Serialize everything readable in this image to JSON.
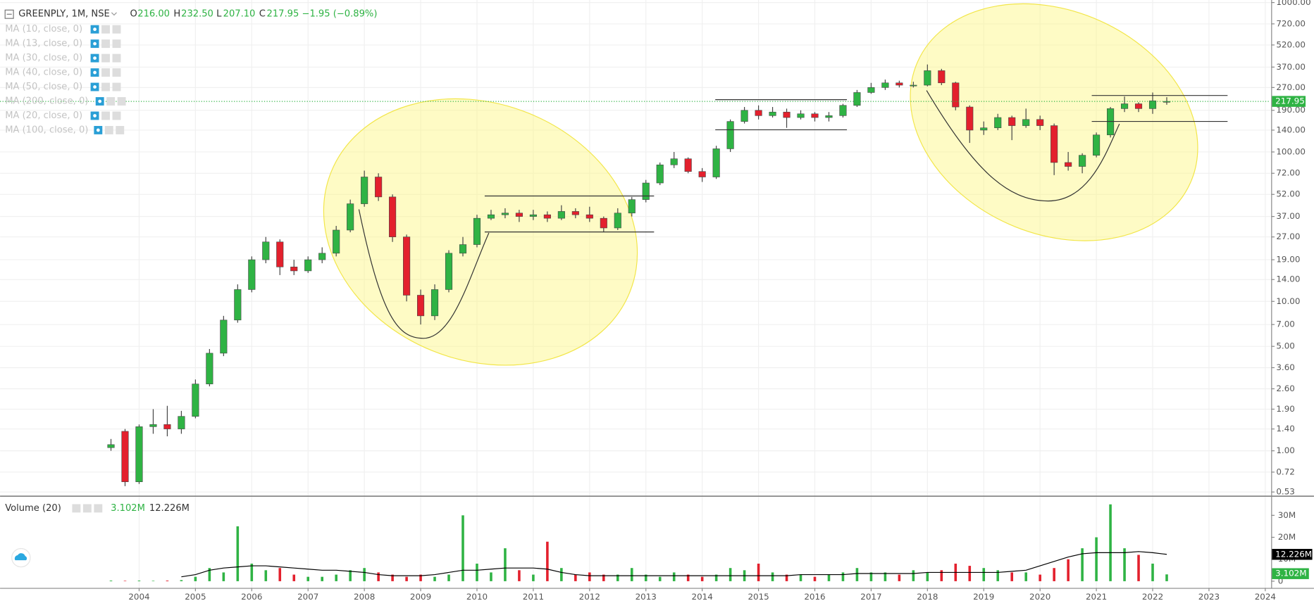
{
  "chart_data": {
    "type": "candlestick",
    "symbol": "GREENPLY, 1M, NSE",
    "ohlc_labels": [
      "O",
      "H",
      "L",
      "C"
    ],
    "ohlc_values": [
      "216.00",
      "232.50",
      "207.10",
      "217.95"
    ],
    "change": "−1.95 (−0.89%)",
    "indicators": [
      "MA (10, close, 0)",
      "MA (13, close, 0)",
      "MA (30, close, 0)",
      "MA (40, close, 0)",
      "MA (50, close, 0)",
      "MA (200, close, 0)",
      "MA (20, close, 0)",
      "MA (100, close, 0)"
    ],
    "x": [
      2003.5,
      2003.75,
      2004,
      2004.25,
      2004.5,
      2004.75,
      2005,
      2005.25,
      2005.5,
      2005.75,
      2006,
      2006.25,
      2006.5,
      2006.75,
      2007,
      2007.25,
      2007.5,
      2007.75,
      2008,
      2008.25,
      2008.5,
      2008.75,
      2009,
      2009.25,
      2009.5,
      2009.75,
      2010,
      2010.25,
      2010.5,
      2010.75,
      2011,
      2011.25,
      2011.5,
      2011.75,
      2012,
      2012.25,
      2012.5,
      2012.75,
      2013,
      2013.25,
      2013.5,
      2013.75,
      2014,
      2014.25,
      2014.5,
      2014.75,
      2015,
      2015.25,
      2015.5,
      2015.75,
      2016,
      2016.25,
      2016.5,
      2016.75,
      2017,
      2017.25,
      2017.5,
      2017.75,
      2018,
      2018.25,
      2018.5,
      2018.75,
      2019,
      2019.25,
      2019.5,
      2019.75,
      2020,
      2020.25,
      2020.5,
      2020.75,
      2021,
      2021.25,
      2021.5,
      2021.75,
      2022,
      2022.25
    ],
    "open": [
      1.05,
      1.35,
      0.62,
      1.45,
      1.5,
      1.4,
      1.7,
      2.8,
      4.5,
      7.5,
      12,
      19,
      25,
      17,
      16,
      19,
      21,
      30,
      45,
      68,
      50,
      27,
      11,
      8,
      12,
      21,
      24,
      36,
      38,
      39,
      37,
      38,
      36,
      40,
      38,
      36,
      31,
      39,
      48,
      62,
      82,
      90,
      74,
      68,
      105,
      160,
      190,
      175,
      185,
      170,
      180,
      170,
      175,
      205,
      250,
      270,
      290,
      280,
      280,
      350,
      290,
      200,
      140,
      145,
      170,
      150,
      165,
      150,
      85,
      80,
      95,
      130,
      195,
      210,
      195,
      216
    ],
    "high": [
      1.2,
      1.4,
      1.5,
      1.9,
      2.0,
      1.85,
      3.0,
      4.8,
      8,
      13,
      20,
      27,
      26,
      19,
      20,
      23,
      32,
      48,
      75,
      72,
      52,
      28,
      12,
      13,
      22,
      27,
      38,
      41,
      42,
      41,
      41,
      40,
      44,
      42,
      43,
      37,
      42,
      50,
      65,
      85,
      100,
      92,
      78,
      110,
      165,
      200,
      205,
      200,
      195,
      190,
      185,
      185,
      210,
      260,
      290,
      305,
      300,
      295,
      385,
      360,
      295,
      205,
      160,
      180,
      175,
      195,
      175,
      155,
      100,
      98,
      135,
      200,
      235,
      215,
      250,
      232.5
    ],
    "low": [
      1.0,
      0.58,
      0.6,
      1.3,
      1.25,
      1.3,
      1.65,
      2.7,
      4.3,
      7.2,
      11.5,
      18,
      15,
      15,
      15.5,
      18,
      20,
      29,
      43,
      47,
      25,
      10,
      7,
      7.5,
      11.5,
      20,
      23,
      35,
      36,
      34,
      35,
      34,
      35,
      36,
      34,
      29,
      30,
      37,
      46,
      60,
      78,
      72,
      63,
      66,
      100,
      155,
      165,
      170,
      145,
      165,
      160,
      160,
      170,
      200,
      245,
      260,
      270,
      270,
      275,
      280,
      190,
      115,
      130,
      140,
      120,
      145,
      140,
      70,
      75,
      72,
      92,
      125,
      185,
      185,
      180,
      207.1
    ],
    "close": [
      1.1,
      0.62,
      1.45,
      1.5,
      1.4,
      1.7,
      2.8,
      4.5,
      7.5,
      12,
      19,
      25,
      17,
      16,
      19,
      21,
      30,
      45,
      68,
      50,
      27,
      11,
      8,
      12,
      21,
      24,
      36,
      38,
      39,
      37,
      38,
      36,
      40,
      38,
      36,
      31,
      39,
      48,
      62,
      82,
      90,
      74,
      68,
      105,
      160,
      190,
      175,
      185,
      170,
      180,
      170,
      175,
      205,
      250,
      270,
      290,
      280,
      280,
      350,
      290,
      200,
      140,
      145,
      170,
      150,
      165,
      150,
      85,
      80,
      95,
      130,
      195,
      210,
      195,
      220,
      217.95
    ],
    "up_color": "#2fb344",
    "down_color": "#e3202d",
    "xlim": [
      2001.53,
      2024.09
    ],
    "xticks": [
      2004,
      2005,
      2006,
      2007,
      2008,
      2009,
      2010,
      2011,
      2012,
      2013,
      2014,
      2015,
      2016,
      2017,
      2018,
      2019,
      2020,
      2021,
      2022,
      2023,
      2024
    ],
    "ylim": [
      0.5,
      1040
    ],
    "log_scale": true,
    "grid": true,
    "yticks": [
      {
        "value": 1000,
        "label": "1000.00"
      },
      {
        "value": 720,
        "label": "720.00"
      },
      {
        "value": 520,
        "label": "520.00"
      },
      {
        "value": 370,
        "label": "370.00"
      },
      {
        "value": 270,
        "label": "270.00"
      },
      {
        "value": 190,
        "label": "190.00"
      },
      {
        "value": 140,
        "label": "140.00"
      },
      {
        "value": 100,
        "label": "100.00"
      },
      {
        "value": 72,
        "label": "72.00"
      },
      {
        "value": 52,
        "label": "52.00"
      },
      {
        "value": 37,
        "label": "37.00"
      },
      {
        "value": 27,
        "label": "27.00"
      },
      {
        "value": 19,
        "label": "19.00"
      },
      {
        "value": 14,
        "label": "14.00"
      },
      {
        "value": 10,
        "label": "10.00"
      },
      {
        "value": 7,
        "label": "7.00"
      },
      {
        "value": 5,
        "label": "5.00"
      },
      {
        "value": 3.6,
        "label": "3.60"
      },
      {
        "value": 2.6,
        "label": "2.60"
      },
      {
        "value": 1.9,
        "label": "1.90"
      },
      {
        "value": 1.4,
        "label": "1.40"
      },
      {
        "value": 1,
        "label": "1.00"
      },
      {
        "value": 0.72,
        "label": "0.72"
      },
      {
        "value": 0.53,
        "label": "0.53"
      }
    ],
    "volume": {
      "title": "Volume (20)",
      "last_label": "3.102M",
      "ma_label": "12.226M",
      "values": [
        0.3,
        0.2,
        0.3,
        0.2,
        0.3,
        0.5,
        2,
        6,
        4,
        25,
        8,
        5,
        6,
        3,
        2,
        2,
        3,
        5,
        6,
        4,
        3,
        2,
        3,
        2,
        3,
        30,
        8,
        4,
        15,
        5,
        3,
        18,
        6,
        3,
        4,
        3,
        3,
        6,
        3,
        2,
        4,
        3,
        2,
        3,
        6,
        5,
        8,
        4,
        3,
        3,
        2,
        3,
        4,
        6,
        4,
        4,
        3,
        5,
        4,
        5,
        8,
        7,
        6,
        5,
        4,
        4,
        3,
        6,
        10,
        15,
        20,
        35,
        15,
        12,
        8,
        3.102
      ],
      "ma": [
        null,
        null,
        null,
        null,
        null,
        2,
        3,
        5,
        6,
        6.5,
        7,
        7,
        6.5,
        6,
        5.5,
        5,
        5,
        4.5,
        4,
        3,
        2.5,
        2.5,
        2.5,
        3,
        4,
        5,
        5,
        5.5,
        6,
        6,
        6,
        5.5,
        4,
        3,
        2.5,
        2.5,
        2.5,
        2.5,
        2.5,
        2.5,
        2.5,
        2.5,
        2.5,
        2.5,
        2.5,
        2.5,
        2.5,
        2.5,
        2.5,
        3,
        3,
        3,
        3,
        3.5,
        3.5,
        3.5,
        3.5,
        3.5,
        4,
        4,
        4,
        4,
        4,
        4,
        4.5,
        5,
        7,
        9,
        11,
        12.5,
        13,
        13,
        13,
        13.5,
        13,
        12.226
      ],
      "ma_color": "#000000",
      "ylim": [
        0,
        37
      ],
      "yticks": [
        0,
        {
          "value": 10,
          "label": "10M"
        },
        {
          "value": 20,
          "label": "20M"
        },
        {
          "value": 30,
          "label": "30M"
        }
      ]
    }
  }
}
